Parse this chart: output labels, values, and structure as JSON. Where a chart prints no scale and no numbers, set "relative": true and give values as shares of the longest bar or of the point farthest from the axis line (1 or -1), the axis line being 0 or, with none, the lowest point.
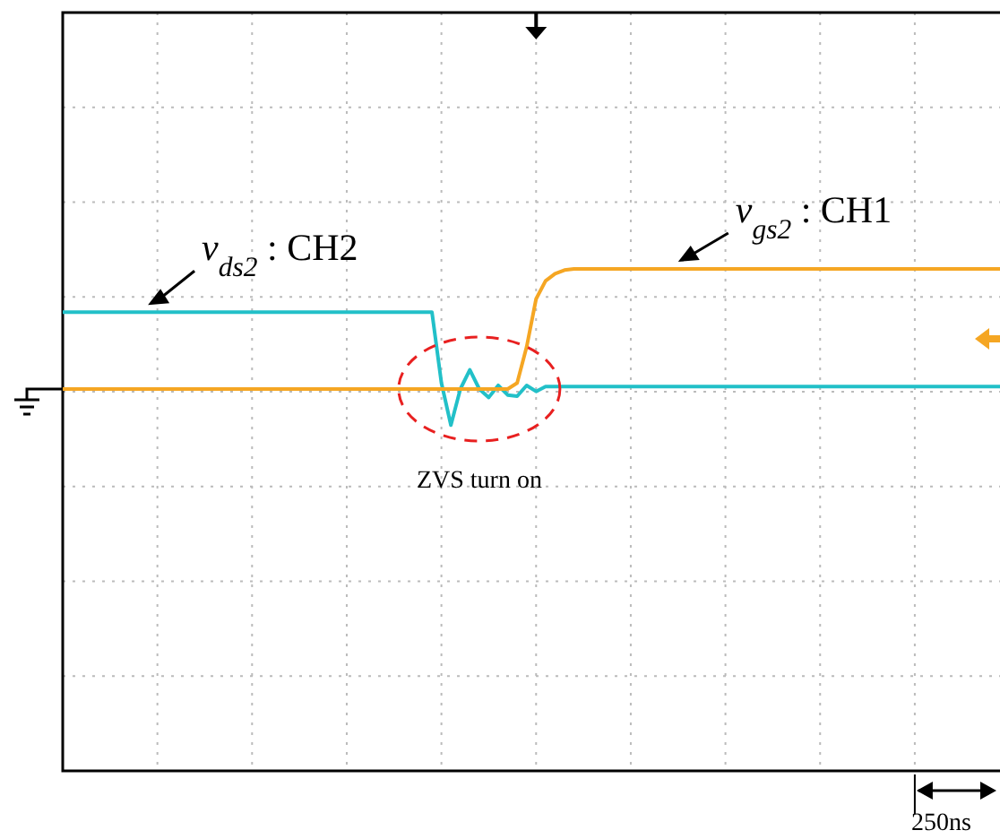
{
  "chart_data": {
    "type": "line",
    "relative": true,
    "grid": true,
    "categories": [
      null,
      null,
      null,
      null,
      null,
      null,
      null,
      null,
      null,
      null,
      null,
      null,
      null,
      null,
      null,
      null,
      null,
      null,
      null,
      null,
      null,
      null,
      null,
      null,
      null,
      null,
      null,
      null,
      null,
      null,
      null,
      null,
      null,
      null,
      null,
      null,
      null,
      null,
      null,
      null,
      null,
      null,
      null,
      null,
      null,
      null,
      null,
      null,
      null,
      null,
      null,
      null,
      null,
      null,
      null,
      null,
      null,
      null,
      null,
      null,
      null,
      null,
      null,
      null,
      null,
      null,
      null,
      null,
      null,
      null,
      null,
      null,
      null,
      null,
      null,
      null,
      null,
      null,
      null,
      null,
      null,
      null,
      null,
      null,
      null,
      null,
      null,
      null,
      null,
      null,
      null,
      null,
      null,
      null,
      null,
      null,
      null,
      null,
      null,
      null
    ],
    "series": [
      {
        "name": "v$_{ds2}$ : CH2",
        "color": "#22c0c8",
        "values": [
          0.64,
          0.64,
          0.64,
          0.64,
          0.64,
          0.64,
          0.64,
          0.64,
          0.64,
          0.64,
          0.64,
          0.64,
          0.64,
          0.64,
          0.64,
          0.64,
          0.64,
          0.64,
          0.64,
          0.64,
          0.64,
          0.64,
          0.64,
          0.64,
          0.64,
          0.64,
          0.64,
          0.64,
          0.64,
          0.64,
          0.64,
          0.64,
          0.64,
          0.64,
          0.64,
          0.64,
          0.64,
          0.64,
          0.64,
          0.64,
          0.05,
          -0.3,
          0.0,
          0.16,
          0.0,
          -0.07,
          0.03,
          -0.05,
          -0.06,
          0.03,
          -0.02,
          0.02,
          0.02,
          0.02,
          0.02,
          0.02,
          0.02,
          0.02,
          0.02,
          0.02,
          0.02,
          0.02,
          0.02,
          0.02,
          0.02,
          0.02,
          0.02,
          0.02,
          0.02,
          0.02,
          0.02,
          0.02,
          0.02,
          0.02,
          0.02,
          0.02,
          0.02,
          0.02,
          0.02,
          0.02,
          0.02,
          0.02,
          0.02,
          0.02,
          0.02,
          0.02,
          0.02,
          0.02,
          0.02,
          0.02,
          0.02,
          0.02,
          0.02,
          0.02,
          0.02,
          0.02,
          0.02,
          0.02,
          0.02,
          0.02
        ]
      },
      {
        "name": "v$_{gs2}$ : CH1",
        "color": "#f5a623",
        "values": [
          0,
          0,
          0,
          0,
          0,
          0,
          0,
          0,
          0,
          0,
          0,
          0,
          0,
          0,
          0,
          0,
          0,
          0,
          0,
          0,
          0,
          0,
          0,
          0,
          0,
          0,
          0,
          0,
          0,
          0,
          0,
          0,
          0,
          0,
          0,
          0,
          0,
          0,
          0,
          0,
          0,
          0,
          0,
          0,
          0,
          0,
          0,
          0,
          0.05,
          0.35,
          0.75,
          0.9,
          0.96,
          0.99,
          1,
          1,
          1,
          1,
          1,
          1,
          1,
          1,
          1,
          1,
          1,
          1,
          1,
          1,
          1,
          1,
          1,
          1,
          1,
          1,
          1,
          1,
          1,
          1,
          1,
          1,
          1,
          1,
          1,
          1,
          1,
          1,
          1,
          1,
          1,
          1,
          1,
          1,
          1,
          1,
          1,
          1,
          1,
          1,
          1,
          1
        ]
      }
    ],
    "annotations": [
      "ZVS turn on",
      "250ns"
    ]
  }
}
